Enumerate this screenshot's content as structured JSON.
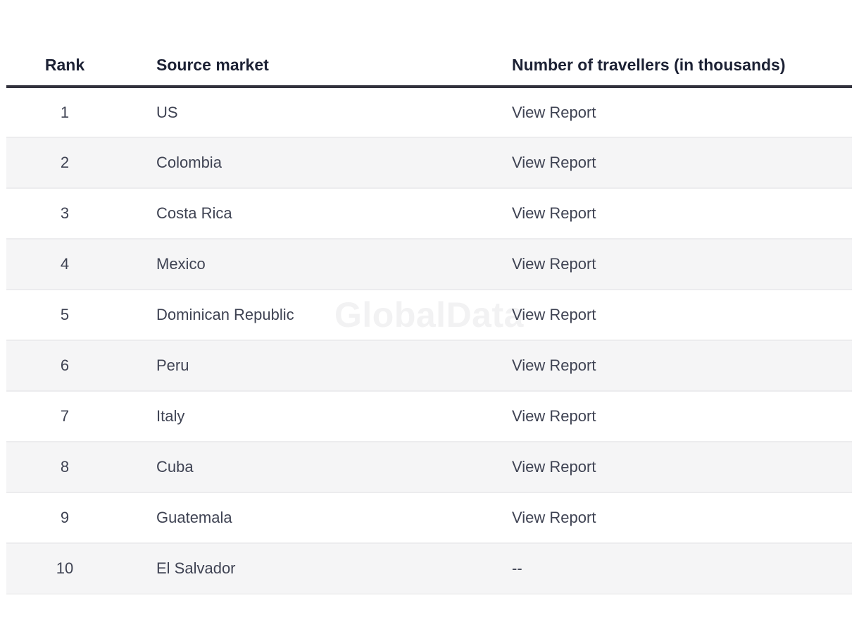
{
  "watermark": "GlobalData",
  "colors": {
    "header_text": "#1c2134",
    "body_text": "#3f4353",
    "stripe_background": "#f5f5f6",
    "row_separator": "#ececee",
    "header_rule": "#32323d",
    "watermark_text": "#f2f2f3",
    "page_background": "#ffffff"
  },
  "table": {
    "columns": [
      {
        "label": "Rank"
      },
      {
        "label": "Source market"
      },
      {
        "label": "Number of travellers (in thousands)"
      }
    ],
    "rows": [
      {
        "rank": "1",
        "market": "US",
        "value": "View Report",
        "value_interactable": "true"
      },
      {
        "rank": "2",
        "market": "Colombia",
        "value": "View Report",
        "value_interactable": "true"
      },
      {
        "rank": "3",
        "market": "Costa Rica",
        "value": "View Report",
        "value_interactable": "true"
      },
      {
        "rank": "4",
        "market": "Mexico",
        "value": "View Report",
        "value_interactable": "true"
      },
      {
        "rank": "5",
        "market": "Dominican Republic",
        "value": "View Report",
        "value_interactable": "true"
      },
      {
        "rank": "6",
        "market": "Peru",
        "value": "View Report",
        "value_interactable": "true"
      },
      {
        "rank": "7",
        "market": "Italy",
        "value": "View Report",
        "value_interactable": "true"
      },
      {
        "rank": "8",
        "market": "Cuba",
        "value": "View Report",
        "value_interactable": "true"
      },
      {
        "rank": "9",
        "market": "Guatemala",
        "value": "View Report",
        "value_interactable": "true"
      },
      {
        "rank": "10",
        "market": "El Salvador",
        "value": "--",
        "value_interactable": "false"
      }
    ]
  }
}
